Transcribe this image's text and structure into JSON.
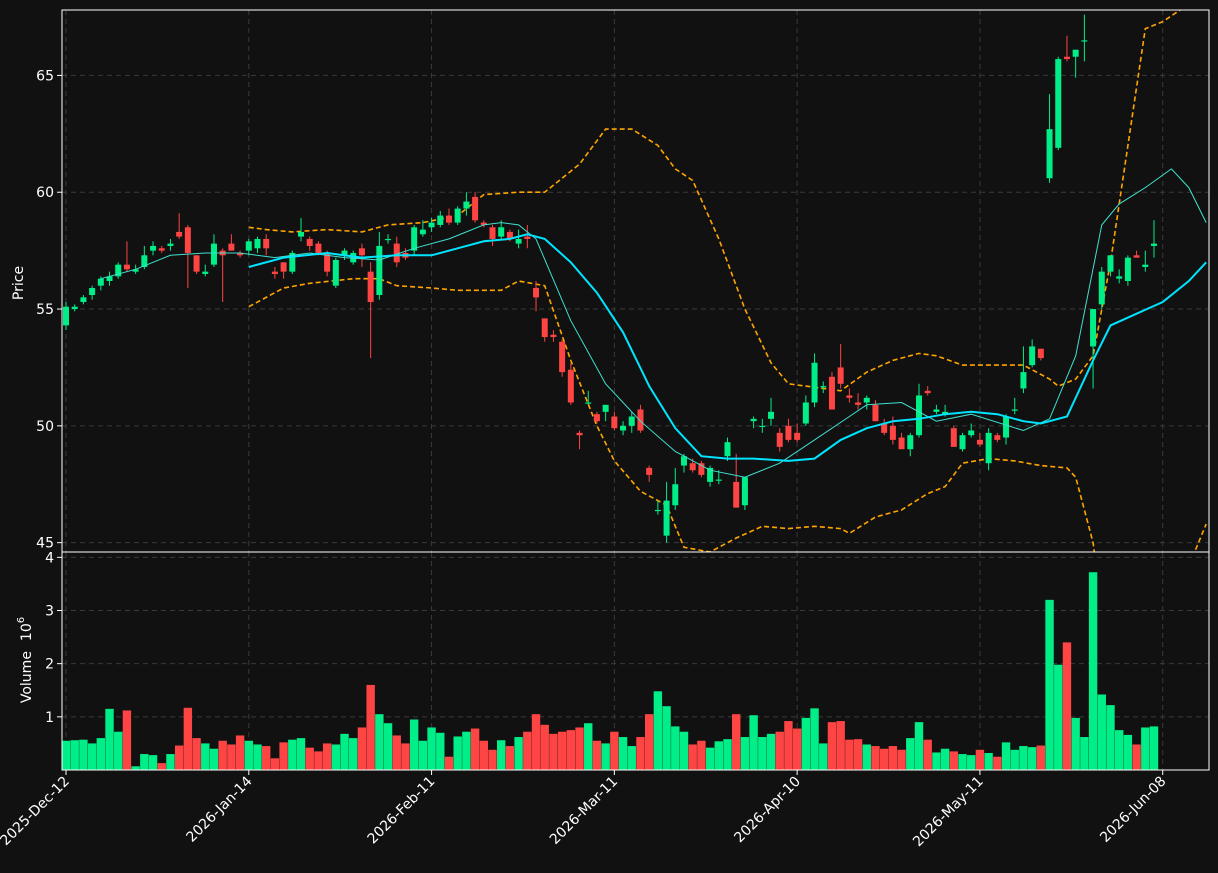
{
  "chart_data": {
    "type": "candlestick",
    "colors": {
      "background": "#111111",
      "up": "#00ee88",
      "down": "#ff4444",
      "mav_fast": "#40e0d0",
      "mav_slow": "#00e5ff",
      "bollinger": "#ffa500",
      "grid": "#3a3a3a",
      "text": "#ffffff"
    },
    "price_panel": {
      "ylabel": "Price",
      "ylim": [
        44.6,
        67.8
      ],
      "yticks": [
        45,
        50,
        55,
        60,
        65
      ],
      "grid": true
    },
    "volume_panel": {
      "ylabel": "Volume",
      "ylabel_exp": "10",
      "ylabel_sup": "6",
      "ylim": [
        0,
        4.1
      ],
      "yticks": [
        1,
        2,
        3,
        4
      ],
      "grid": true
    },
    "x_tick_labels": [
      {
        "index": 0,
        "label": "2025-Dec-12"
      },
      {
        "index": 21,
        "label": "2026-Jan-14"
      },
      {
        "index": 42,
        "label": "2026-Feb-11"
      },
      {
        "index": 63,
        "label": "2026-Mar-11"
      },
      {
        "index": 84,
        "label": "2026-Apr-10"
      },
      {
        "index": 105,
        "label": "2026-May-11"
      },
      {
        "index": 126,
        "label": "2026-Jun-08"
      }
    ],
    "candles": [
      [
        54.3,
        55.3,
        54.1,
        55.1,
        0.55
      ],
      [
        55.0,
        55.2,
        54.9,
        55.1,
        0.56
      ],
      [
        55.3,
        55.6,
        55.2,
        55.5,
        0.57
      ],
      [
        55.6,
        56.0,
        55.4,
        55.9,
        0.5
      ],
      [
        56.0,
        56.4,
        55.8,
        56.3,
        0.6
      ],
      [
        56.2,
        56.6,
        56.0,
        56.4,
        1.15
      ],
      [
        56.4,
        57.0,
        56.3,
        56.9,
        0.72
      ],
      [
        56.9,
        57.9,
        56.6,
        56.7,
        1.12
      ],
      [
        56.6,
        56.9,
        56.5,
        56.7,
        0.07
      ],
      [
        56.8,
        57.7,
        56.7,
        57.3,
        0.3
      ],
      [
        57.5,
        57.9,
        57.3,
        57.7,
        0.28
      ],
      [
        57.6,
        57.7,
        57.4,
        57.5,
        0.13
      ],
      [
        57.7,
        58.0,
        57.5,
        57.8,
        0.3
      ],
      [
        58.3,
        59.1,
        58.0,
        58.1,
        0.46
      ],
      [
        58.5,
        58.6,
        55.9,
        57.4,
        1.17
      ],
      [
        57.3,
        57.3,
        56.5,
        56.6,
        0.6
      ],
      [
        56.5,
        56.9,
        56.4,
        56.6,
        0.5
      ],
      [
        56.9,
        58.2,
        56.8,
        57.8,
        0.4
      ],
      [
        57.5,
        57.6,
        55.3,
        57.3,
        0.55
      ],
      [
        57.8,
        58.2,
        57.5,
        57.5,
        0.48
      ],
      [
        57.4,
        57.5,
        57.2,
        57.3,
        0.65
      ],
      [
        57.5,
        58.0,
        57.3,
        57.9,
        0.55
      ],
      [
        57.6,
        58.1,
        57.4,
        58.0,
        0.48
      ],
      [
        58.0,
        58.2,
        57.3,
        57.6,
        0.45
      ],
      [
        56.6,
        56.8,
        56.3,
        56.5,
        0.22
      ],
      [
        57.0,
        57.0,
        56.3,
        56.6,
        0.52
      ],
      [
        56.6,
        57.5,
        56.5,
        57.4,
        0.57
      ],
      [
        58.1,
        58.9,
        57.9,
        58.3,
        0.6
      ],
      [
        58.0,
        58.1,
        57.5,
        57.7,
        0.42
      ],
      [
        57.8,
        57.9,
        57.3,
        57.4,
        0.35
      ],
      [
        57.4,
        57.5,
        56.4,
        56.6,
        0.5
      ],
      [
        56.0,
        57.2,
        55.9,
        57.1,
        0.48
      ],
      [
        57.3,
        57.6,
        57.1,
        57.5,
        0.68
      ],
      [
        57.0,
        57.5,
        56.9,
        57.4,
        0.6
      ],
      [
        57.6,
        57.8,
        56.8,
        57.3,
        0.8
      ],
      [
        56.6,
        57.0,
        52.9,
        55.3,
        1.6
      ],
      [
        55.6,
        58.3,
        55.4,
        57.7,
        1.05
      ],
      [
        58.0,
        58.2,
        57.8,
        58.0,
        0.88
      ],
      [
        57.8,
        58.1,
        56.8,
        57.0,
        0.65
      ],
      [
        57.4,
        57.6,
        57.1,
        57.2,
        0.5
      ],
      [
        57.5,
        58.6,
        57.3,
        58.5,
        0.95
      ],
      [
        58.2,
        58.8,
        58.1,
        58.4,
        0.55
      ],
      [
        58.5,
        58.9,
        58.3,
        58.7,
        0.8
      ],
      [
        58.6,
        59.2,
        58.5,
        59.0,
        0.7
      ],
      [
        59.0,
        59.3,
        58.6,
        58.7,
        0.25
      ],
      [
        58.7,
        59.4,
        58.6,
        59.3,
        0.63
      ],
      [
        59.3,
        60.0,
        59.0,
        59.6,
        0.72
      ],
      [
        59.8,
        60.0,
        58.7,
        58.8,
        0.78
      ],
      [
        58.7,
        58.8,
        58.5,
        58.6,
        0.55
      ],
      [
        58.5,
        58.6,
        57.7,
        58.0,
        0.38
      ],
      [
        58.1,
        58.8,
        58.0,
        58.5,
        0.56
      ],
      [
        58.3,
        58.4,
        57.9,
        58.0,
        0.45
      ],
      [
        57.8,
        58.4,
        57.6,
        58.0,
        0.62
      ],
      [
        58.1,
        58.6,
        57.6,
        58.0,
        0.72
      ],
      [
        55.9,
        56.2,
        54.9,
        55.5,
        1.05
      ],
      [
        54.6,
        54.6,
        53.6,
        53.8,
        0.85
      ],
      [
        53.9,
        54.1,
        53.6,
        53.8,
        0.68
      ],
      [
        53.6,
        53.7,
        52.1,
        52.3,
        0.72
      ],
      [
        52.4,
        52.7,
        50.9,
        51.0,
        0.75
      ],
      [
        49.7,
        49.8,
        49.0,
        49.6,
        0.8
      ],
      [
        51.0,
        51.5,
        50.9,
        51.0,
        0.88
      ],
      [
        50.5,
        50.6,
        50.1,
        50.2,
        0.55
      ],
      [
        50.6,
        50.9,
        50.2,
        50.9,
        0.5
      ],
      [
        50.4,
        50.6,
        49.8,
        49.9,
        0.72
      ],
      [
        49.8,
        50.2,
        49.6,
        50.0,
        0.62
      ],
      [
        50.0,
        50.6,
        49.7,
        50.4,
        0.45
      ],
      [
        50.7,
        50.9,
        49.7,
        49.8,
        0.62
      ],
      [
        48.2,
        48.3,
        47.6,
        47.9,
        1.05
      ],
      [
        46.4,
        46.8,
        46.2,
        46.4,
        1.48
      ],
      [
        45.3,
        47.6,
        45.0,
        46.8,
        1.2
      ],
      [
        46.6,
        48.2,
        46.4,
        47.5,
        0.82
      ],
      [
        48.3,
        48.8,
        48.0,
        48.7,
        0.72
      ],
      [
        48.4,
        48.6,
        48.0,
        48.1,
        0.48
      ],
      [
        48.4,
        48.5,
        47.8,
        47.9,
        0.55
      ],
      [
        47.6,
        48.3,
        47.4,
        48.2,
        0.42
      ],
      [
        47.7,
        48.1,
        47.5,
        47.7,
        0.54
      ],
      [
        48.7,
        49.5,
        48.5,
        49.3,
        0.58
      ],
      [
        47.6,
        48.8,
        46.5,
        46.5,
        1.05
      ],
      [
        46.6,
        47.8,
        46.4,
        47.8,
        0.62
      ],
      [
        50.2,
        50.4,
        49.9,
        50.3,
        1.03
      ],
      [
        50.0,
        50.3,
        49.7,
        50.0,
        0.62
      ],
      [
        50.3,
        51.2,
        50.0,
        50.6,
        0.68
      ],
      [
        49.7,
        49.9,
        48.9,
        49.1,
        0.72
      ],
      [
        50.0,
        50.3,
        49.3,
        49.4,
        0.92
      ],
      [
        49.7,
        50.1,
        49.3,
        49.4,
        0.78
      ],
      [
        50.1,
        51.3,
        50.0,
        51.0,
        0.98
      ],
      [
        51.0,
        53.1,
        50.8,
        52.7,
        1.16
      ],
      [
        51.7,
        51.9,
        51.4,
        51.7,
        0.5
      ],
      [
        52.1,
        52.3,
        50.7,
        50.7,
        0.9
      ],
      [
        52.5,
        53.5,
        51.6,
        51.8,
        0.92
      ],
      [
        51.3,
        51.6,
        51.0,
        51.2,
        0.57
      ],
      [
        51.0,
        51.4,
        50.7,
        50.9,
        0.58
      ],
      [
        51.0,
        51.3,
        50.7,
        51.2,
        0.48
      ],
      [
        50.9,
        51.1,
        50.2,
        50.2,
        0.45
      ],
      [
        50.1,
        50.3,
        49.6,
        49.7,
        0.4
      ],
      [
        50.0,
        50.4,
        49.2,
        49.4,
        0.45
      ],
      [
        49.5,
        49.7,
        49.0,
        49.0,
        0.38
      ],
      [
        49.0,
        49.7,
        48.7,
        49.6,
        0.6
      ],
      [
        49.6,
        51.8,
        49.5,
        51.3,
        0.9
      ],
      [
        51.5,
        51.7,
        51.3,
        51.4,
        0.57
      ],
      [
        50.6,
        50.9,
        50.5,
        50.7,
        0.33
      ],
      [
        50.5,
        50.9,
        50.4,
        50.6,
        0.4
      ],
      [
        49.9,
        50.0,
        49.1,
        49.1,
        0.35
      ],
      [
        49.0,
        49.7,
        48.9,
        49.6,
        0.3
      ],
      [
        49.6,
        50.1,
        49.5,
        49.8,
        0.28
      ],
      [
        49.4,
        49.7,
        49.1,
        49.2,
        0.38
      ],
      [
        48.4,
        49.9,
        48.1,
        49.7,
        0.32
      ],
      [
        49.6,
        49.7,
        49.3,
        49.4,
        0.25
      ],
      [
        49.5,
        50.5,
        49.2,
        50.4,
        0.52
      ],
      [
        50.7,
        51.2,
        50.5,
        50.7,
        0.38
      ],
      [
        51.6,
        53.4,
        51.4,
        52.3,
        0.45
      ],
      [
        52.6,
        53.7,
        52.5,
        53.4,
        0.43
      ],
      [
        53.3,
        53.3,
        52.8,
        52.9,
        0.46
      ],
      [
        60.6,
        64.2,
        60.4,
        62.7,
        3.2
      ],
      [
        61.9,
        65.8,
        61.8,
        65.7,
        1.98
      ],
      [
        65.8,
        66.7,
        65.6,
        65.7,
        2.4
      ],
      [
        65.8,
        66.1,
        64.9,
        66.1,
        0.98
      ],
      [
        66.5,
        67.6,
        65.6,
        66.5,
        0.62
      ],
      [
        53.4,
        55.0,
        51.6,
        55.0,
        3.72
      ],
      [
        55.2,
        56.8,
        55.0,
        56.6,
        1.42
      ],
      [
        56.6,
        57.3,
        56.4,
        57.3,
        1.22
      ],
      [
        56.3,
        56.7,
        56.1,
        56.4,
        0.75
      ],
      [
        56.2,
        57.3,
        56.0,
        57.2,
        0.66
      ],
      [
        57.3,
        57.5,
        57.2,
        57.2,
        0.48
      ],
      [
        56.8,
        57.5,
        56.6,
        56.9,
        0.8
      ],
      [
        57.7,
        58.8,
        57.2,
        57.8,
        0.82
      ]
    ],
    "mav_fast": [
      [
        4,
        56.3
      ],
      [
        8,
        56.7
      ],
      [
        10,
        57.0
      ],
      [
        12,
        57.3
      ],
      [
        16,
        57.4
      ],
      [
        20,
        57.4
      ],
      [
        24,
        57.2
      ],
      [
        28,
        57.4
      ],
      [
        32,
        57.2
      ],
      [
        36,
        57.1
      ],
      [
        40,
        57.6
      ],
      [
        44,
        58.0
      ],
      [
        48,
        58.6
      ],
      [
        50,
        58.7
      ],
      [
        52,
        58.6
      ],
      [
        54,
        58.0
      ],
      [
        58,
        54.5
      ],
      [
        62,
        51.8
      ],
      [
        66,
        50.2
      ],
      [
        70,
        48.9
      ],
      [
        74,
        48.1
      ],
      [
        78,
        47.8
      ],
      [
        82,
        48.4
      ],
      [
        86,
        49.4
      ],
      [
        90,
        50.4
      ],
      [
        92,
        50.9
      ],
      [
        96,
        51.0
      ],
      [
        100,
        50.2
      ],
      [
        104,
        50.5
      ],
      [
        110,
        49.8
      ],
      [
        113,
        50.3
      ],
      [
        116,
        53.0
      ],
      [
        119,
        58.6
      ],
      [
        121,
        59.5
      ],
      [
        124,
        60.2
      ],
      [
        127,
        61.0
      ],
      [
        129,
        60.2
      ],
      [
        131,
        58.7
      ]
    ],
    "mav_slow": [
      [
        21,
        56.8
      ],
      [
        25,
        57.2
      ],
      [
        30,
        57.4
      ],
      [
        34,
        57.2
      ],
      [
        38,
        57.3
      ],
      [
        42,
        57.3
      ],
      [
        45,
        57.6
      ],
      [
        48,
        57.9
      ],
      [
        51,
        58.0
      ],
      [
        53,
        58.2
      ],
      [
        55,
        58.0
      ],
      [
        58,
        57.0
      ],
      [
        61,
        55.7
      ],
      [
        64,
        54.0
      ],
      [
        67,
        51.7
      ],
      [
        70,
        49.9
      ],
      [
        73,
        48.7
      ],
      [
        76,
        48.6
      ],
      [
        79,
        48.6
      ],
      [
        83,
        48.5
      ],
      [
        86,
        48.6
      ],
      [
        89,
        49.4
      ],
      [
        92,
        49.9
      ],
      [
        95,
        50.2
      ],
      [
        98,
        50.3
      ],
      [
        101,
        50.5
      ],
      [
        104,
        50.6
      ],
      [
        107,
        50.5
      ],
      [
        110,
        50.2
      ],
      [
        112,
        50.1
      ],
      [
        114,
        50.3
      ],
      [
        115,
        50.4
      ],
      [
        118,
        52.8
      ],
      [
        120,
        54.3
      ],
      [
        123,
        54.8
      ],
      [
        126,
        55.3
      ],
      [
        129,
        56.2
      ],
      [
        131,
        57.0
      ]
    ],
    "boll_upper": [
      [
        21,
        58.5
      ],
      [
        23,
        58.4
      ],
      [
        26,
        58.3
      ],
      [
        30,
        58.4
      ],
      [
        34,
        58.3
      ],
      [
        37,
        58.6
      ],
      [
        41,
        58.7
      ],
      [
        45,
        59.0
      ],
      [
        48,
        59.9
      ],
      [
        52,
        60.0
      ],
      [
        55,
        60.0
      ],
      [
        59,
        61.2
      ],
      [
        62,
        62.7
      ],
      [
        65,
        62.7
      ],
      [
        68,
        62.0
      ],
      [
        70,
        61.0
      ],
      [
        72,
        60.5
      ],
      [
        75,
        58.0
      ],
      [
        78,
        55.0
      ],
      [
        81,
        52.7
      ],
      [
        83,
        51.8
      ],
      [
        85,
        51.7
      ],
      [
        89,
        51.5
      ],
      [
        92,
        52.3
      ],
      [
        95,
        52.8
      ],
      [
        98,
        53.1
      ],
      [
        100,
        53.0
      ],
      [
        103,
        52.6
      ],
      [
        106,
        52.6
      ],
      [
        110,
        52.6
      ],
      [
        113,
        52.0
      ],
      [
        114,
        51.7
      ],
      [
        116,
        52.0
      ],
      [
        118,
        53.0
      ],
      [
        120,
        57.0
      ],
      [
        122,
        62.0
      ],
      [
        124,
        67.0
      ],
      [
        126,
        67.3
      ],
      [
        128,
        67.8
      ]
    ],
    "boll_lower": [
      [
        21,
        55.1
      ],
      [
        25,
        55.9
      ],
      [
        28,
        56.1
      ],
      [
        33,
        56.3
      ],
      [
        36,
        56.3
      ],
      [
        38,
        56.0
      ],
      [
        42,
        55.9
      ],
      [
        45,
        55.8
      ],
      [
        48,
        55.8
      ],
      [
        50,
        55.8
      ],
      [
        52,
        56.2
      ],
      [
        55,
        56.0
      ],
      [
        58,
        52.8
      ],
      [
        61,
        50.0
      ],
      [
        63,
        48.5
      ],
      [
        66,
        47.2
      ],
      [
        69,
        46.6
      ],
      [
        71,
        44.8
      ],
      [
        74,
        44.6
      ],
      [
        77,
        45.2
      ],
      [
        80,
        45.7
      ],
      [
        83,
        45.6
      ],
      [
        86,
        45.7
      ],
      [
        89,
        45.6
      ],
      [
        90,
        45.4
      ],
      [
        93,
        46.1
      ],
      [
        96,
        46.4
      ],
      [
        99,
        47.1
      ],
      [
        101,
        47.4
      ],
      [
        103,
        48.4
      ],
      [
        106,
        48.6
      ],
      [
        109,
        48.5
      ],
      [
        112,
        48.3
      ],
      [
        115,
        48.2
      ],
      [
        116,
        47.8
      ],
      [
        118,
        45.0
      ],
      [
        119,
        42.0
      ],
      [
        125,
        42.0
      ],
      [
        129,
        44.0
      ],
      [
        131,
        45.8
      ]
    ]
  }
}
